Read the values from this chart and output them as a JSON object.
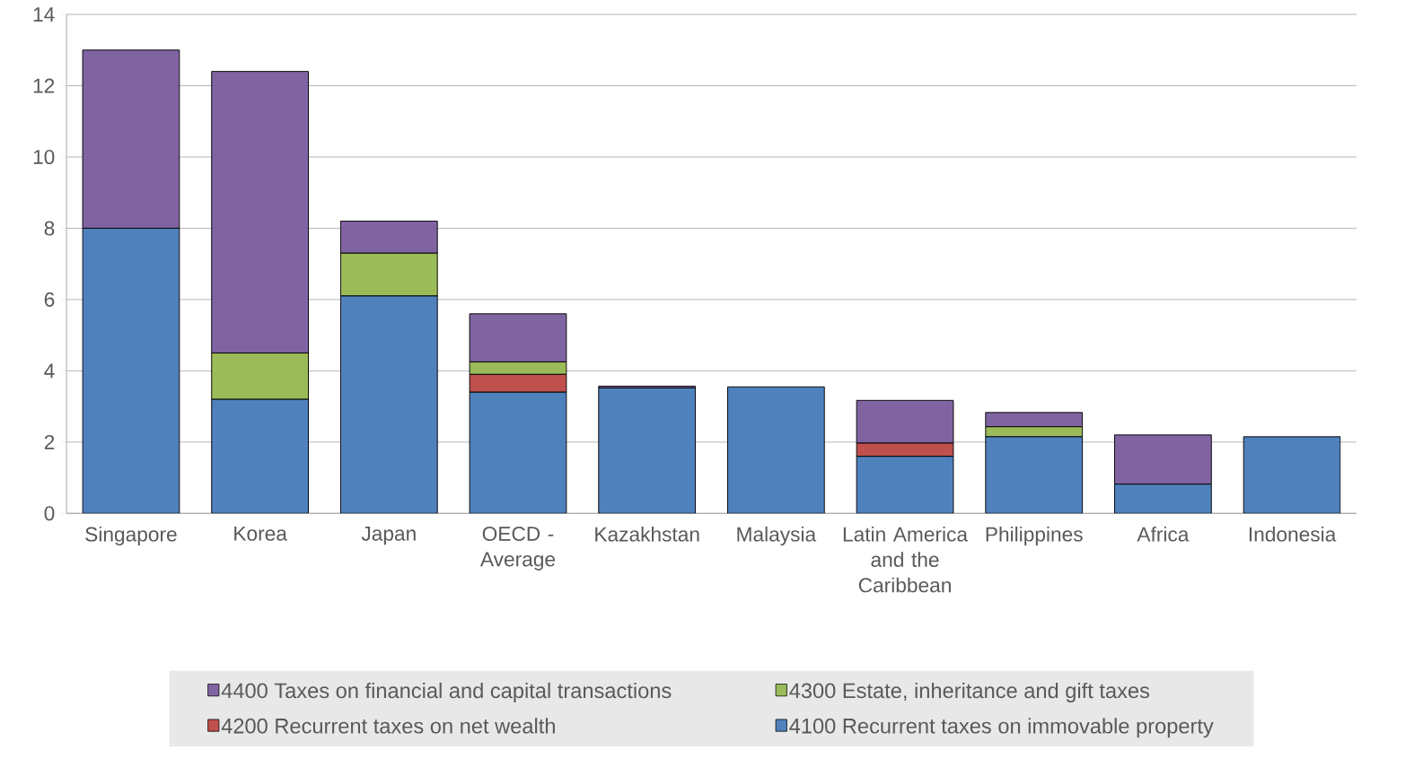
{
  "chart_data": {
    "type": "bar",
    "stacked": true,
    "categories": [
      "Singapore",
      "Korea",
      "Japan",
      "OECD - Average",
      "Kazakhstan",
      "Malaysia",
      "Latin America and the Caribbean",
      "Philippines",
      "Africa",
      "Indonesia"
    ],
    "series": [
      {
        "name": "4100 Recurrent taxes on immovable property",
        "color": "#4f81bd",
        "values": [
          8.0,
          3.2,
          6.1,
          3.4,
          3.52,
          3.55,
          1.6,
          2.15,
          0.82,
          2.15
        ]
      },
      {
        "name": "4200 Recurrent taxes on net wealth",
        "color": "#c0504d",
        "values": [
          null,
          null,
          null,
          0.5,
          null,
          null,
          0.37,
          null,
          null,
          null
        ]
      },
      {
        "name": "4300 Estate, inheritance and gift taxes",
        "color": "#9bbb59",
        "values": [
          null,
          1.3,
          1.2,
          0.35,
          null,
          null,
          null,
          0.28,
          null,
          null
        ]
      },
      {
        "name": "4400 Taxes on financial and capital transactions",
        "color": "#8064a2",
        "values": [
          5.0,
          7.9,
          0.9,
          1.35,
          0.05,
          null,
          1.2,
          0.4,
          1.38,
          null
        ]
      }
    ],
    "ylim": [
      0,
      14
    ],
    "yticks": [
      0,
      2,
      4,
      6,
      8,
      10,
      12,
      14
    ],
    "grid": "y",
    "legend": "bottom"
  }
}
